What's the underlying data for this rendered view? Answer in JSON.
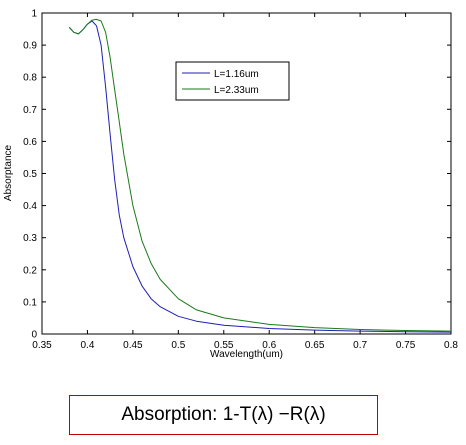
{
  "chart_data": {
    "type": "line",
    "title": "",
    "xlabel": "Wavelength(um)",
    "ylabel": "Absorptance",
    "xlim": [
      0.35,
      0.8
    ],
    "ylim": [
      0,
      1
    ],
    "xticks": [
      "0.35",
      "0.4",
      "0.45",
      "0.5",
      "0.55",
      "0.6",
      "0.65",
      "0.7",
      "0.75",
      "0.8"
    ],
    "yticks": [
      "0",
      "0.1",
      "0.2",
      "0.3",
      "0.4",
      "0.5",
      "0.6",
      "0.7",
      "0.8",
      "0.9",
      "1"
    ],
    "grid": false,
    "legend_position": "top-center",
    "series": [
      {
        "name": "L=1.16um",
        "color": "#1f1fb4",
        "x": [
          0.38,
          0.385,
          0.39,
          0.395,
          0.4,
          0.405,
          0.41,
          0.415,
          0.42,
          0.425,
          0.43,
          0.435,
          0.44,
          0.45,
          0.46,
          0.47,
          0.48,
          0.5,
          0.52,
          0.55,
          0.6,
          0.65,
          0.7,
          0.75,
          0.8
        ],
        "y": [
          0.955,
          0.94,
          0.935,
          0.948,
          0.965,
          0.975,
          0.96,
          0.9,
          0.77,
          0.62,
          0.48,
          0.37,
          0.3,
          0.21,
          0.15,
          0.11,
          0.085,
          0.055,
          0.04,
          0.027,
          0.017,
          0.012,
          0.009,
          0.007,
          0.006
        ]
      },
      {
        "name": "L=2.33um",
        "color": "#1a7a1a",
        "x": [
          0.38,
          0.385,
          0.39,
          0.395,
          0.4,
          0.405,
          0.41,
          0.415,
          0.42,
          0.425,
          0.43,
          0.435,
          0.44,
          0.45,
          0.46,
          0.47,
          0.48,
          0.5,
          0.52,
          0.55,
          0.6,
          0.65,
          0.7,
          0.75,
          0.8
        ],
        "y": [
          0.955,
          0.94,
          0.935,
          0.948,
          0.965,
          0.978,
          0.98,
          0.975,
          0.94,
          0.86,
          0.76,
          0.66,
          0.56,
          0.4,
          0.29,
          0.22,
          0.17,
          0.11,
          0.075,
          0.05,
          0.03,
          0.02,
          0.014,
          0.011,
          0.009
        ]
      }
    ]
  },
  "caption": {
    "text": "Absorption: 1-T(λ) −R(λ)"
  }
}
